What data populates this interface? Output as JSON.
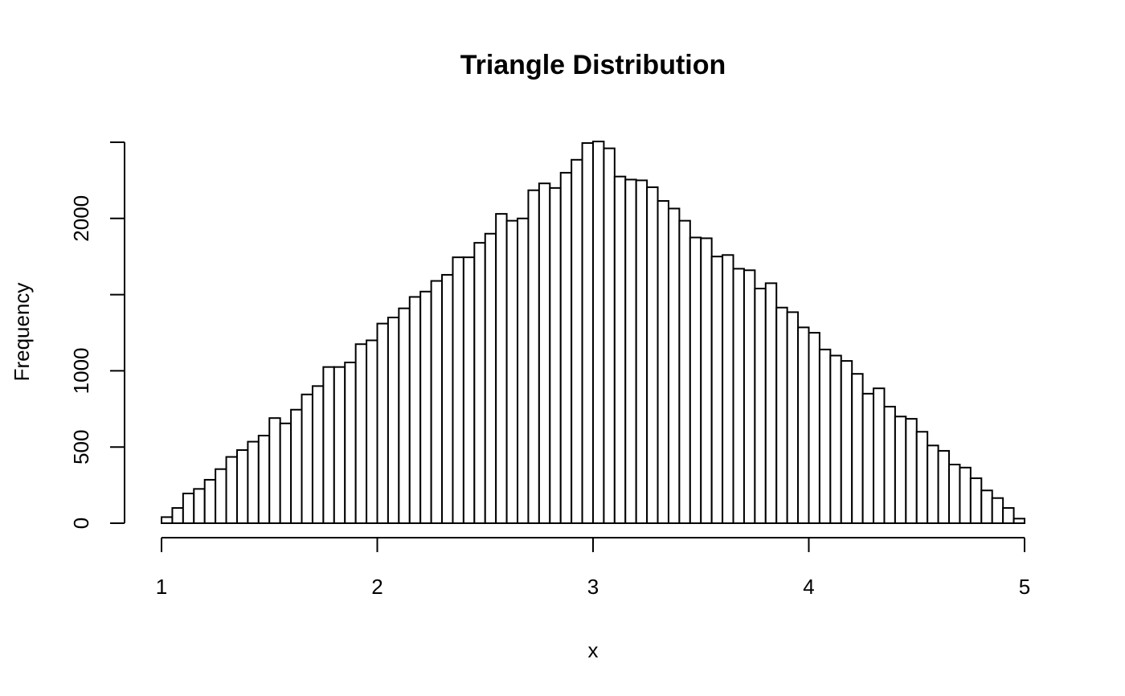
{
  "chart_data": {
    "type": "bar",
    "title": "Triangle Distribution",
    "xlabel": "x",
    "ylabel": "Frequency",
    "xlim": [
      1,
      5
    ],
    "ylim": [
      0,
      2500
    ],
    "x_ticks": [
      1,
      2,
      3,
      4,
      5
    ],
    "y_ticks": [
      0,
      500,
      1000,
      1500,
      2000,
      2500
    ],
    "y_tick_labels": [
      "0",
      "500",
      "1000",
      "",
      "2000",
      ""
    ],
    "bin_width": 0.05,
    "bin_start": 1,
    "values": [
      40,
      100,
      195,
      225,
      285,
      355,
      435,
      480,
      535,
      575,
      690,
      655,
      745,
      845,
      900,
      1025,
      1025,
      1055,
      1175,
      1200,
      1310,
      1350,
      1410,
      1485,
      1520,
      1590,
      1630,
      1745,
      1745,
      1840,
      1900,
      2030,
      1985,
      2000,
      2185,
      2230,
      2200,
      2300,
      2385,
      2495,
      2505,
      2460,
      2275,
      2255,
      2250,
      2205,
      2115,
      2065,
      1985,
      1875,
      1870,
      1750,
      1760,
      1670,
      1660,
      1540,
      1575,
      1415,
      1385,
      1285,
      1250,
      1140,
      1100,
      1065,
      980,
      850,
      885,
      765,
      700,
      685,
      600,
      510,
      475,
      385,
      365,
      295,
      215,
      165,
      100,
      30
    ]
  }
}
